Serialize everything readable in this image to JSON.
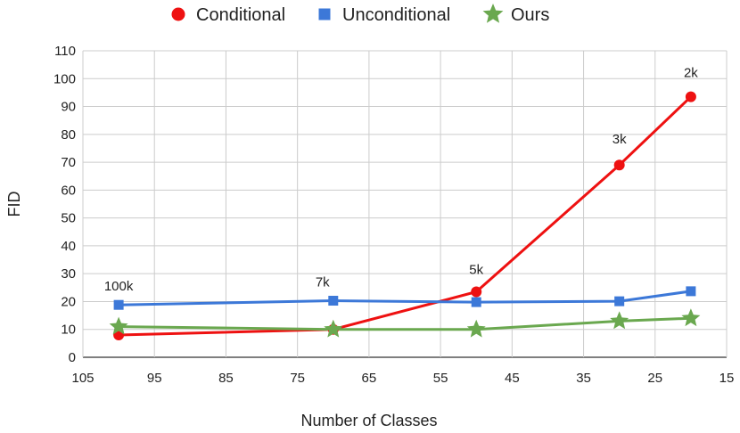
{
  "chart_data": {
    "type": "line",
    "xlabel": "Number of Classes",
    "ylabel": "FID",
    "xlim": [
      105,
      15
    ],
    "x_reversed": true,
    "ylim": [
      0,
      110
    ],
    "x_ticks": [
      105,
      95,
      85,
      75,
      65,
      55,
      45,
      35,
      25,
      15
    ],
    "y_ticks": [
      0,
      10,
      20,
      30,
      40,
      50,
      60,
      70,
      80,
      90,
      100,
      110
    ],
    "grid": true,
    "legend_position": "top",
    "series": [
      {
        "name": "Conditional",
        "color": "#ee1111",
        "marker": "circle",
        "x": [
          100,
          70,
          50,
          30,
          20
        ],
        "y": [
          8,
          10,
          23.5,
          69,
          93.5
        ]
      },
      {
        "name": "Unconditional",
        "color": "#3c78d8",
        "marker": "square",
        "x": [
          100,
          70,
          50,
          30,
          20
        ],
        "y": [
          18.8,
          20.3,
          19.8,
          20.1,
          23.7
        ]
      },
      {
        "name": "Ours",
        "color": "#6aa84f",
        "marker": "star",
        "x": [
          100,
          70,
          50,
          30,
          20
        ],
        "y": [
          11,
          10,
          10,
          13,
          14
        ]
      }
    ],
    "annotations": [
      {
        "text": "100k",
        "x": 100,
        "y": 18.8
      },
      {
        "text": "7k",
        "x": 70,
        "y": 20.3
      },
      {
        "text": "5k",
        "x": 50,
        "y": 23.5
      },
      {
        "text": "3k",
        "x": 30,
        "y": 69
      },
      {
        "text": "2k",
        "x": 20,
        "y": 93.5
      }
    ]
  }
}
